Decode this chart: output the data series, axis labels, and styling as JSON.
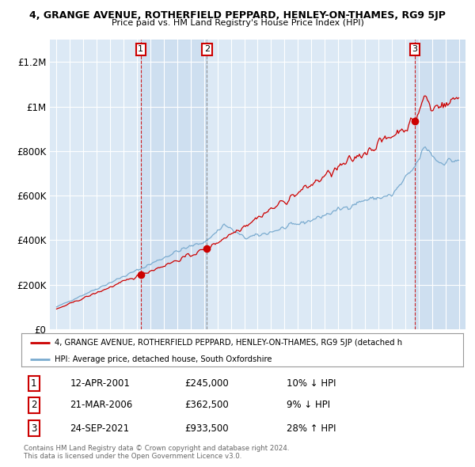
{
  "title": "4, GRANGE AVENUE, ROTHERFIELD PEPPARD, HENLEY-ON-THAMES, RG9 5JP",
  "subtitle": "Price paid vs. HM Land Registry's House Price Index (HPI)",
  "bg_color": "#dce9f5",
  "red_color": "#cc0000",
  "blue_color": "#7aabcf",
  "shade_color": "#c5d9ee",
  "transactions": [
    {
      "year": 2001.28,
      "price": 245000,
      "label": "1",
      "date": "12-APR-2001",
      "pct": "10%",
      "dir": "↓"
    },
    {
      "year": 2006.22,
      "price": 362500,
      "label": "2",
      "date": "21-MAR-2006",
      "pct": "9%",
      "dir": "↓"
    },
    {
      "year": 2021.73,
      "price": 933500,
      "label": "3",
      "date": "24-SEP-2021",
      "pct": "28%",
      "dir": "↑"
    }
  ],
  "legend_line1": "4, GRANGE AVENUE, ROTHERFIELD PEPPARD, HENLEY-ON-THAMES, RG9 5JP (detached h",
  "legend_line2": "HPI: Average price, detached house, South Oxfordshire",
  "footer1": "Contains HM Land Registry data © Crown copyright and database right 2024.",
  "footer2": "This data is licensed under the Open Government Licence v3.0.",
  "table": [
    {
      "num": "1",
      "date": "12-APR-2001",
      "price": "£245,000",
      "pct": "10% ↓ HPI"
    },
    {
      "num": "2",
      "date": "21-MAR-2006",
      "price": "£362,500",
      "pct": "9% ↓ HPI"
    },
    {
      "num": "3",
      "date": "24-SEP-2021",
      "price": "£933,500",
      "pct": "28% ↑ HPI"
    }
  ],
  "ylim": [
    0,
    1300000
  ],
  "xlim": [
    1994.5,
    2025.5
  ],
  "yticks": [
    0,
    200000,
    400000,
    600000,
    800000,
    1000000,
    1200000
  ],
  "ytick_labels": [
    "£0",
    "£200K",
    "£400K",
    "£600K",
    "£800K",
    "£1M",
    "£1.2M"
  ],
  "xticks": [
    1995,
    1996,
    1997,
    1998,
    1999,
    2000,
    2001,
    2002,
    2003,
    2004,
    2005,
    2006,
    2007,
    2008,
    2009,
    2010,
    2011,
    2012,
    2013,
    2014,
    2015,
    2016,
    2017,
    2018,
    2019,
    2020,
    2021,
    2022,
    2023,
    2024,
    2025
  ]
}
